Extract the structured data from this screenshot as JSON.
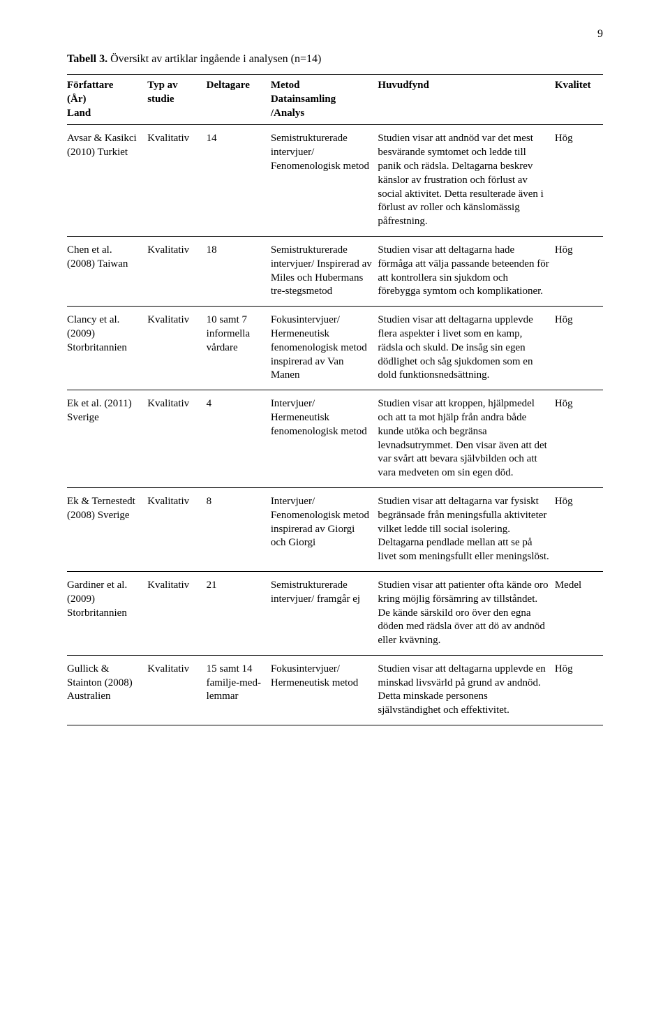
{
  "page_number": "9",
  "caption_label": "Tabell 3.",
  "caption_rest": " Översikt av artiklar ingående i analysen (n=14)",
  "header": {
    "c0_l1": "Författare",
    "c0_l2": "(År)",
    "c0_l3": "Land",
    "c1_l1": "Typ av",
    "c1_l2": "studie",
    "c2_l1": "Deltagare",
    "c3_l1": "Metod",
    "c3_l2": "Datainsamling",
    "c3_l3": "/Analys",
    "c4_l1": "Huvudfynd",
    "c5_l1": "Kvalitet"
  },
  "rows": [
    {
      "author": "Avsar & Kasikci (2010) Turkiet",
      "type": "Kvalitativ",
      "participants": "14",
      "method": "Semistrukturerade intervjuer/ Fenomenologisk metod",
      "finding": "Studien visar att andnöd var det mest besvärande symtomet och ledde till panik och rädsla. Deltagarna beskrev känslor av frustration och förlust av social aktivitet. Detta resulterade även i förlust av roller och känslomässig påfrestning.",
      "quality": "Hög"
    },
    {
      "author": "Chen et al. (2008) Taiwan",
      "type": "Kvalitativ",
      "participants": "18",
      "method": "Semistrukturerade intervjuer/ Inspirerad av Miles och Hubermans tre-stegsmetod",
      "finding": "Studien visar att deltagarna hade förmåga att välja passande beteenden för att kontrollera sin sjukdom och förebygga symtom och komplikationer.",
      "quality": "Hög"
    },
    {
      "author": "Clancy et al. (2009) Storbritannien",
      "type": "Kvalitativ",
      "participants": "10 samt 7 informella vårdare",
      "method": "Fokusintervjuer/ Hermeneutisk fenomenologisk metod inspirerad av Van Manen",
      "finding": "Studien visar att deltagarna upplevde flera aspekter i livet som en kamp, rädsla och skuld. De insåg sin egen dödlighet och såg sjukdomen som en dold funktionsnedsättning.",
      "quality": "Hög"
    },
    {
      "author": "Ek et al. (2011) Sverige",
      "type": "Kvalitativ",
      "participants": "4",
      "method": "Intervjuer/ Hermeneutisk fenomenologisk metod",
      "finding": "Studien visar att kroppen, hjälpmedel och att ta mot hjälp från andra både kunde utöka och begränsa levnadsutrymmet. Den visar även att det var svårt att bevara självbilden och att vara medveten om sin egen död.",
      "quality": "Hög"
    },
    {
      "author": "Ek & Ternestedt (2008) Sverige",
      "type": "Kvalitativ",
      "participants": "8",
      "method": "Intervjuer/ Fenomenologisk metod inspirerad av Giorgi och Giorgi",
      "finding": "Studien visar att deltagarna var fysiskt begränsade från meningsfulla aktiviteter vilket ledde till social isolering. Deltagarna pendlade mellan att se på livet som meningsfullt eller meningslöst.",
      "quality": "Hög"
    },
    {
      "author": "Gardiner et al. (2009) Storbritannien",
      "type": "Kvalitativ",
      "participants": "21",
      "method": "Semistrukturerade intervjuer/ framgår ej",
      "finding": "Studien visar att patienter ofta kände oro kring möjlig försämring av tillståndet. De kände särskild oro över den egna döden med rädsla över att dö av andnöd eller kvävning.",
      "quality": "Medel"
    },
    {
      "author": "Gullick & Stainton (2008) Australien",
      "type": "Kvalitativ",
      "participants": "15 samt 14 familje-med-lemmar",
      "method": "Fokusintervjuer/ Hermeneutisk metod",
      "finding": "Studien visar att deltagarna upplevde en minskad livsvärld på grund av andnöd. Detta minskade personens självständighet och effektivitet.",
      "quality": "Hög"
    }
  ]
}
